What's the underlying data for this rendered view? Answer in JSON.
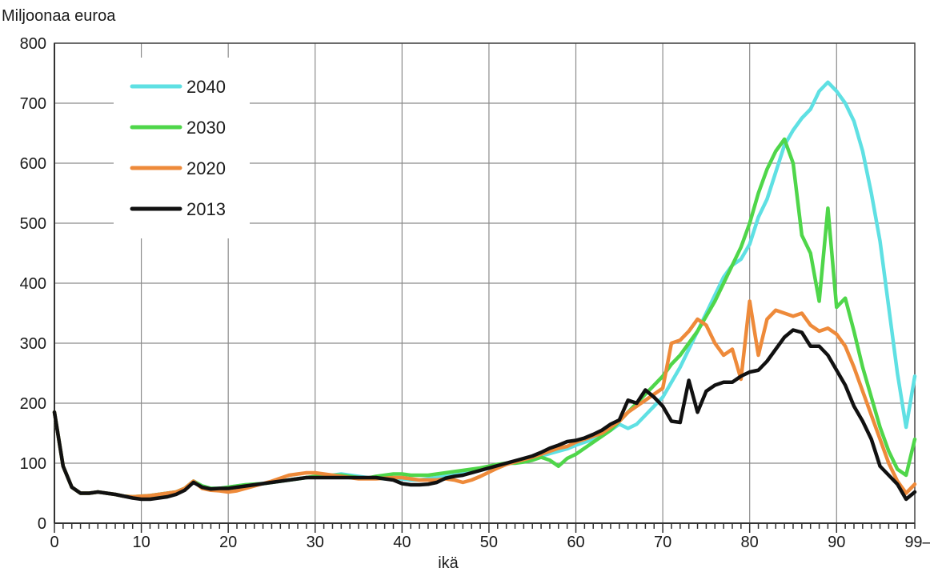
{
  "chart_data": {
    "type": "line",
    "ylabel": "Miljoonaa euroa",
    "xlabel": "ikä",
    "xlim": [
      0,
      99
    ],
    "ylim": [
      0,
      800
    ],
    "y_ticks": [
      0,
      100,
      200,
      300,
      400,
      500,
      600,
      700,
      800
    ],
    "x_ticks": [
      0,
      10,
      20,
      30,
      40,
      50,
      60,
      70,
      80,
      90
    ],
    "x_ticks_labels": [
      "0",
      "10",
      "20",
      "30",
      "40",
      "50",
      "60",
      "70",
      "80",
      "90"
    ],
    "x_last_tick_label": "99–",
    "grid": true,
    "legend_position": "top-left",
    "series": [
      {
        "name": "2040",
        "color": "#5fe0e3",
        "x": [
          0,
          1,
          2,
          3,
          4,
          5,
          6,
          7,
          8,
          9,
          10,
          11,
          12,
          13,
          14,
          15,
          16,
          17,
          18,
          19,
          20,
          21,
          22,
          23,
          24,
          25,
          26,
          27,
          28,
          29,
          30,
          31,
          32,
          33,
          34,
          35,
          36,
          37,
          38,
          39,
          40,
          41,
          42,
          43,
          44,
          45,
          46,
          47,
          48,
          49,
          50,
          51,
          52,
          53,
          54,
          55,
          56,
          57,
          58,
          59,
          60,
          61,
          62,
          63,
          64,
          65,
          66,
          67,
          68,
          69,
          70,
          71,
          72,
          73,
          74,
          75,
          76,
          77,
          78,
          79,
          80,
          81,
          82,
          83,
          84,
          85,
          86,
          87,
          88,
          89,
          90,
          91,
          92,
          93,
          94,
          95,
          96,
          97,
          98,
          99
        ],
        "values": [
          185,
          95,
          60,
          50,
          50,
          52,
          50,
          48,
          45,
          44,
          45,
          46,
          48,
          50,
          52,
          58,
          70,
          62,
          58,
          58,
          60,
          62,
          64,
          65,
          66,
          68,
          70,
          72,
          74,
          76,
          78,
          80,
          80,
          82,
          80,
          78,
          76,
          75,
          74,
          74,
          74,
          72,
          72,
          74,
          76,
          78,
          80,
          82,
          85,
          88,
          92,
          95,
          98,
          102,
          105,
          108,
          112,
          116,
          120,
          124,
          130,
          135,
          140,
          148,
          155,
          165,
          158,
          165,
          180,
          195,
          210,
          235,
          260,
          290,
          320,
          350,
          380,
          410,
          430,
          440,
          465,
          510,
          540,
          585,
          630,
          655,
          675,
          690,
          720,
          735,
          720,
          700,
          670,
          620,
          550,
          470,
          360,
          250,
          160,
          245
        ]
      },
      {
        "name": "2030",
        "color": "#4fd64a",
        "x": [
          0,
          1,
          2,
          3,
          4,
          5,
          6,
          7,
          8,
          9,
          10,
          11,
          12,
          13,
          14,
          15,
          16,
          17,
          18,
          19,
          20,
          21,
          22,
          23,
          24,
          25,
          26,
          27,
          28,
          29,
          30,
          31,
          32,
          33,
          34,
          35,
          36,
          37,
          38,
          39,
          40,
          41,
          42,
          43,
          44,
          45,
          46,
          47,
          48,
          49,
          50,
          51,
          52,
          53,
          54,
          55,
          56,
          57,
          58,
          59,
          60,
          61,
          62,
          63,
          64,
          65,
          66,
          67,
          68,
          69,
          70,
          71,
          72,
          73,
          74,
          75,
          76,
          77,
          78,
          79,
          80,
          81,
          82,
          83,
          84,
          85,
          86,
          87,
          88,
          89,
          90,
          91,
          92,
          93,
          94,
          95,
          96,
          97,
          98,
          99
        ],
        "values": [
          185,
          95,
          60,
          50,
          50,
          52,
          50,
          48,
          45,
          44,
          45,
          46,
          48,
          50,
          52,
          58,
          70,
          62,
          58,
          58,
          60,
          62,
          64,
          65,
          66,
          68,
          70,
          72,
          74,
          76,
          78,
          80,
          80,
          80,
          78,
          76,
          75,
          78,
          80,
          82,
          82,
          80,
          80,
          80,
          82,
          84,
          86,
          88,
          90,
          92,
          95,
          98,
          100,
          100,
          102,
          105,
          110,
          105,
          95,
          108,
          115,
          125,
          135,
          145,
          155,
          170,
          185,
          200,
          215,
          230,
          245,
          265,
          280,
          300,
          320,
          345,
          370,
          400,
          430,
          460,
          500,
          550,
          590,
          620,
          640,
          600,
          480,
          450,
          370,
          525,
          360,
          375,
          320,
          260,
          210,
          160,
          120,
          90,
          80,
          140
        ]
      },
      {
        "name": "2020",
        "color": "#ee8a3a",
        "x": [
          0,
          1,
          2,
          3,
          4,
          5,
          6,
          7,
          8,
          9,
          10,
          11,
          12,
          13,
          14,
          15,
          16,
          17,
          18,
          19,
          20,
          21,
          22,
          23,
          24,
          25,
          26,
          27,
          28,
          29,
          30,
          31,
          32,
          33,
          34,
          35,
          36,
          37,
          38,
          39,
          40,
          41,
          42,
          43,
          44,
          45,
          46,
          47,
          48,
          49,
          50,
          51,
          52,
          53,
          54,
          55,
          56,
          57,
          58,
          59,
          60,
          61,
          62,
          63,
          64,
          65,
          66,
          67,
          68,
          69,
          70,
          71,
          72,
          73,
          74,
          75,
          76,
          77,
          78,
          79,
          80,
          81,
          82,
          83,
          84,
          85,
          86,
          87,
          88,
          89,
          90,
          91,
          92,
          93,
          94,
          95,
          96,
          97,
          98,
          99
        ],
        "values": [
          185,
          95,
          60,
          50,
          50,
          52,
          50,
          48,
          45,
          44,
          45,
          46,
          48,
          50,
          52,
          58,
          70,
          58,
          55,
          54,
          52,
          54,
          58,
          62,
          66,
          70,
          75,
          80,
          82,
          84,
          84,
          82,
          80,
          78,
          76,
          74,
          74,
          74,
          75,
          76,
          76,
          74,
          72,
          72,
          72,
          74,
          72,
          68,
          72,
          78,
          85,
          92,
          98,
          102,
          106,
          110,
          115,
          120,
          125,
          128,
          135,
          140,
          145,
          150,
          160,
          170,
          185,
          195,
          205,
          215,
          225,
          300,
          305,
          320,
          340,
          330,
          300,
          280,
          290,
          240,
          370,
          280,
          340,
          355,
          350,
          345,
          350,
          330,
          320,
          325,
          315,
          295,
          260,
          220,
          180,
          140,
          100,
          70,
          50,
          65
        ]
      },
      {
        "name": "2013",
        "color": "#111111",
        "x": [
          0,
          1,
          2,
          3,
          4,
          5,
          6,
          7,
          8,
          9,
          10,
          11,
          12,
          13,
          14,
          15,
          16,
          17,
          18,
          19,
          20,
          21,
          22,
          23,
          24,
          25,
          26,
          27,
          28,
          29,
          30,
          31,
          32,
          33,
          34,
          35,
          36,
          37,
          38,
          39,
          40,
          41,
          42,
          43,
          44,
          45,
          46,
          47,
          48,
          49,
          50,
          51,
          52,
          53,
          54,
          55,
          56,
          57,
          58,
          59,
          60,
          61,
          62,
          63,
          64,
          65,
          66,
          67,
          68,
          69,
          70,
          71,
          72,
          73,
          74,
          75,
          76,
          77,
          78,
          79,
          80,
          81,
          82,
          83,
          84,
          85,
          86,
          87,
          88,
          89,
          90,
          91,
          92,
          93,
          94,
          95,
          96,
          97,
          98,
          99
        ],
        "values": [
          185,
          95,
          60,
          50,
          50,
          52,
          50,
          48,
          45,
          42,
          40,
          40,
          42,
          44,
          48,
          55,
          68,
          60,
          57,
          58,
          58,
          60,
          62,
          64,
          66,
          68,
          70,
          72,
          74,
          76,
          76,
          76,
          76,
          76,
          76,
          76,
          76,
          76,
          74,
          72,
          66,
          64,
          64,
          65,
          68,
          75,
          78,
          80,
          84,
          88,
          92,
          96,
          100,
          104,
          108,
          112,
          118,
          125,
          130,
          136,
          138,
          142,
          148,
          155,
          165,
          172,
          205,
          200,
          222,
          210,
          195,
          170,
          168,
          238,
          185,
          220,
          230,
          235,
          235,
          245,
          252,
          255,
          270,
          290,
          310,
          322,
          318,
          295,
          295,
          280,
          255,
          230,
          195,
          170,
          140,
          95,
          80,
          65,
          40,
          52
        ]
      }
    ]
  }
}
